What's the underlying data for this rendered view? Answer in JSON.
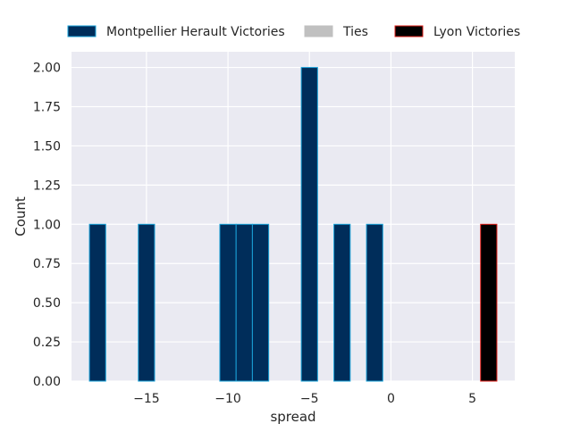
{
  "chart_data": {
    "type": "bar",
    "xlabel": "spread",
    "ylabel": "Count",
    "xlim": [
      -19.6,
      7.6
    ],
    "ylim": [
      0,
      2.1
    ],
    "x_ticks": [
      -15,
      -10,
      -5,
      0,
      5
    ],
    "x_tick_labels": [
      "−15",
      "−10",
      "−5",
      "0",
      "5"
    ],
    "y_ticks": [
      0,
      0.25,
      0.5,
      0.75,
      1.0,
      1.25,
      1.5,
      1.75,
      2.0
    ],
    "y_tick_labels": [
      "0.00",
      "0.25",
      "0.50",
      "0.75",
      "1.00",
      "1.25",
      "1.50",
      "1.75",
      "2.00"
    ],
    "grid": true,
    "legend_placement": "top",
    "bin_width": 1,
    "series": [
      {
        "name": "Montpellier Herault Victories",
        "fill": "#002d5a",
        "edge": "#1aa3d9",
        "bins": [
          {
            "start": -18.5,
            "count": 1
          },
          {
            "start": -15.5,
            "count": 1
          },
          {
            "start": -10.5,
            "count": 1
          },
          {
            "start": -9.5,
            "count": 1
          },
          {
            "start": -8.5,
            "count": 1
          },
          {
            "start": -5.5,
            "count": 2
          },
          {
            "start": -3.5,
            "count": 1
          },
          {
            "start": -1.5,
            "count": 1
          }
        ]
      },
      {
        "name": "Ties",
        "fill": "#c0c0c0",
        "edge": "#c0c0c0",
        "bins": []
      },
      {
        "name": "Lyon Victories",
        "fill": "#000000",
        "edge": "#e0201a",
        "bins": [
          {
            "start": 5.5,
            "count": 1
          }
        ]
      }
    ],
    "colors": {
      "plot_bg": "#eaeaf2",
      "grid": "#ffffff",
      "text": "#262626"
    }
  }
}
